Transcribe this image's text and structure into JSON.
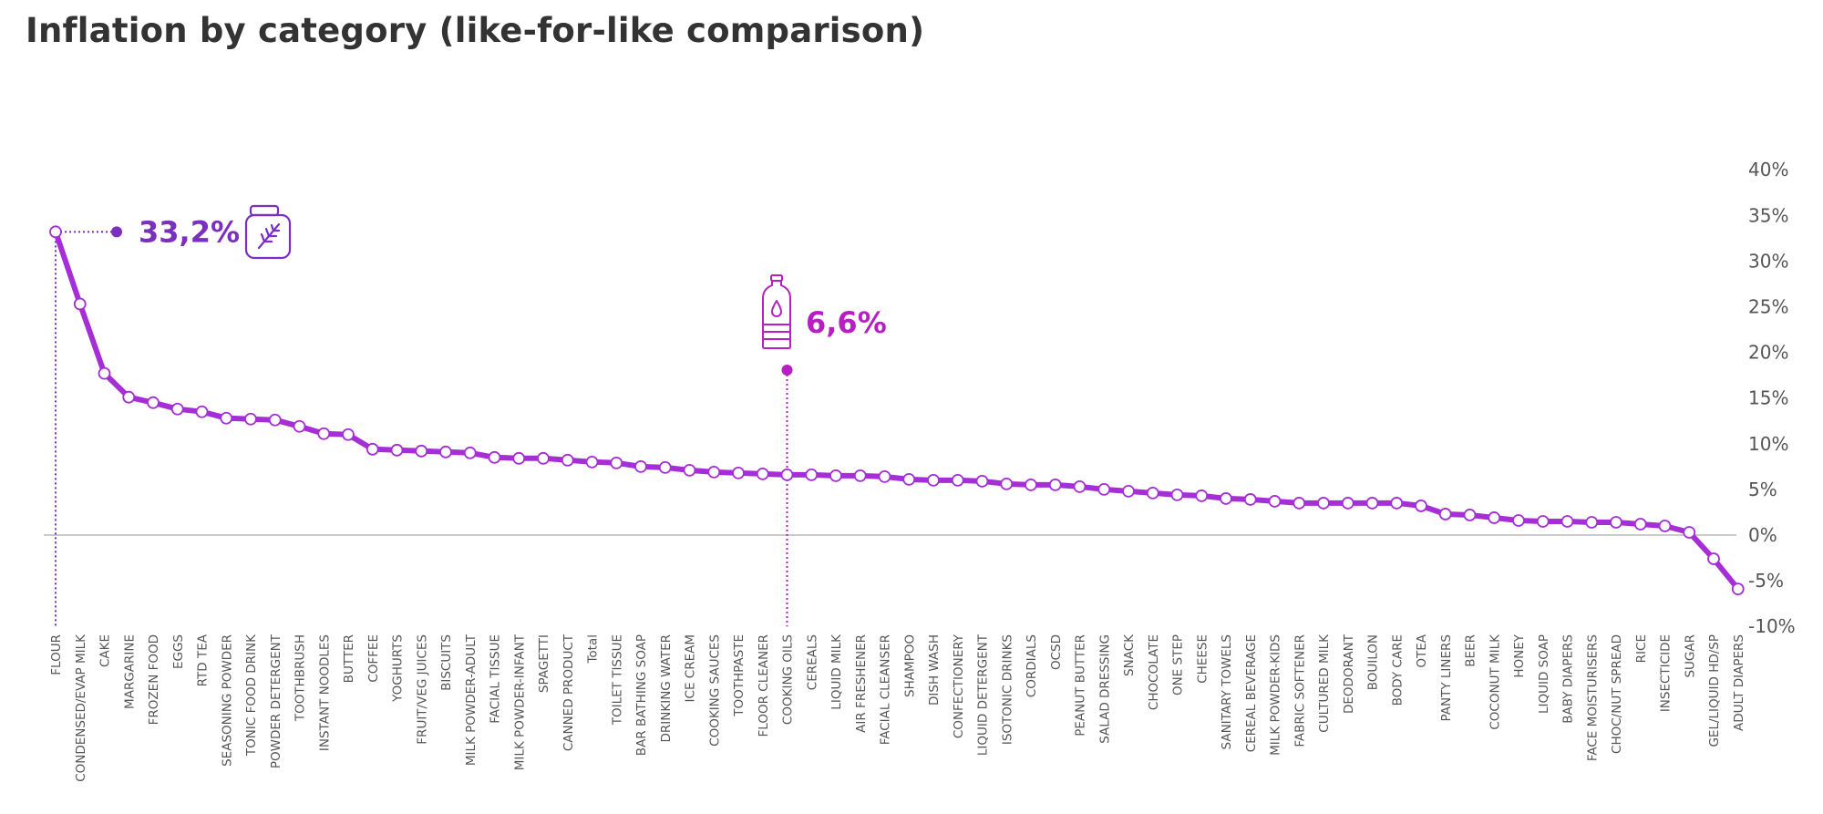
{
  "chart_data": {
    "type": "line",
    "title": "Inflation by category (like-for-like comparison)",
    "xlabel": "",
    "ylabel": "",
    "ylim": [
      -10,
      40
    ],
    "yticks": [
      40,
      35,
      30,
      25,
      20,
      15,
      10,
      5,
      0,
      -5,
      -10
    ],
    "ytick_labels": [
      "40%",
      "35%",
      "30%",
      "25%",
      "20%",
      "15%",
      "10%",
      "5%",
      "0%",
      "-5%",
      "-10%"
    ],
    "grid": false,
    "legend": "none",
    "colors": {
      "line": "#a52ed6",
      "accent_flour": "#7b2fbe",
      "accent_oil": "#b81fc2",
      "zero_line": "#aaaaaa"
    },
    "categories": [
      "FLOUR",
      "CONDENSED/EVAP MILK",
      "CAKE",
      "MARGARINE",
      "FROZEN FOOD",
      "EGGS",
      "RTD TEA",
      "SEASONING POWDER",
      "TONIC FOOD DRINK",
      "POWDER DETERGENT",
      "TOOTHBRUSH",
      "INSTANT NOODLES",
      "BUTTER",
      "COFFEE",
      "YOGHURTS",
      "FRUIT/VEG JUICES",
      "BISCUITS",
      "MILK POWDER-ADULT",
      "FACIAL TISSUE",
      "MILK POWDER-INFANT",
      "SPAGETTI",
      "CANNED PRODUCT",
      "Total",
      "TOILET TISSUE",
      "BAR BATHING SOAP",
      "DRINKING WATER",
      "ICE CREAM",
      "COOKING SAUCES",
      "TOOTHPASTE",
      "FLOOR CLEANER",
      "COOKING OILS",
      "CEREALS",
      "LIQUID MILK",
      "AIR FRESHENER",
      "FACIAL CLEANSER",
      "SHAMPOO",
      "DISH WASH",
      "CONFECTIONERY",
      "LIQUID DETERGENT",
      "ISOTONIC DRINKS",
      "CORDIALS",
      "OCSD",
      "PEANUT BUTTER",
      "SALAD DRESSING",
      "SNACK",
      "CHOCOLATE",
      "ONE STEP",
      "CHEESE",
      "SANITARY TOWELS",
      "CEREAL BEVERAGE",
      "MILK POWDER-KIDS",
      "FABRIC SOFTENER",
      "CULTURED MILK",
      "DEODORANT",
      "BOUILON",
      "BODY CARE",
      "OTEA",
      "PANTY LINERS",
      "BEER",
      "COCONUT MILK",
      "HONEY",
      "LIQUID SOAP",
      "BABY DIAPERS",
      "FACE MOISTURISERS",
      "CHOC/NUT SPREAD",
      "RICE",
      "INSECTICIDE",
      "SUGAR",
      "GEL/LIQUID HD/SP",
      "ADULT DIAPERS"
    ],
    "values": [
      33.2,
      25.3,
      17.7,
      15.1,
      14.5,
      13.8,
      13.5,
      12.8,
      12.7,
      12.6,
      11.9,
      11.1,
      11.0,
      9.4,
      9.3,
      9.2,
      9.1,
      9.0,
      8.5,
      8.4,
      8.4,
      8.2,
      8.0,
      7.9,
      7.5,
      7.4,
      7.1,
      6.9,
      6.8,
      6.7,
      6.6,
      6.6,
      6.5,
      6.5,
      6.4,
      6.1,
      6.0,
      6.0,
      5.9,
      5.6,
      5.5,
      5.5,
      5.3,
      5.0,
      4.8,
      4.6,
      4.4,
      4.3,
      4.0,
      3.9,
      3.7,
      3.5,
      3.5,
      3.5,
      3.5,
      3.5,
      3.2,
      2.3,
      2.2,
      1.9,
      1.6,
      1.5,
      1.5,
      1.4,
      1.4,
      1.2,
      1.0,
      0.3,
      -2.6,
      -5.9
    ],
    "annotations": [
      {
        "category": "FLOUR",
        "label": "33,2%"
      },
      {
        "category": "COOKING OILS",
        "label": "6,6%"
      }
    ]
  },
  "icons": {
    "flour": "flour-jar-icon",
    "oil": "oil-bottle-icon"
  }
}
